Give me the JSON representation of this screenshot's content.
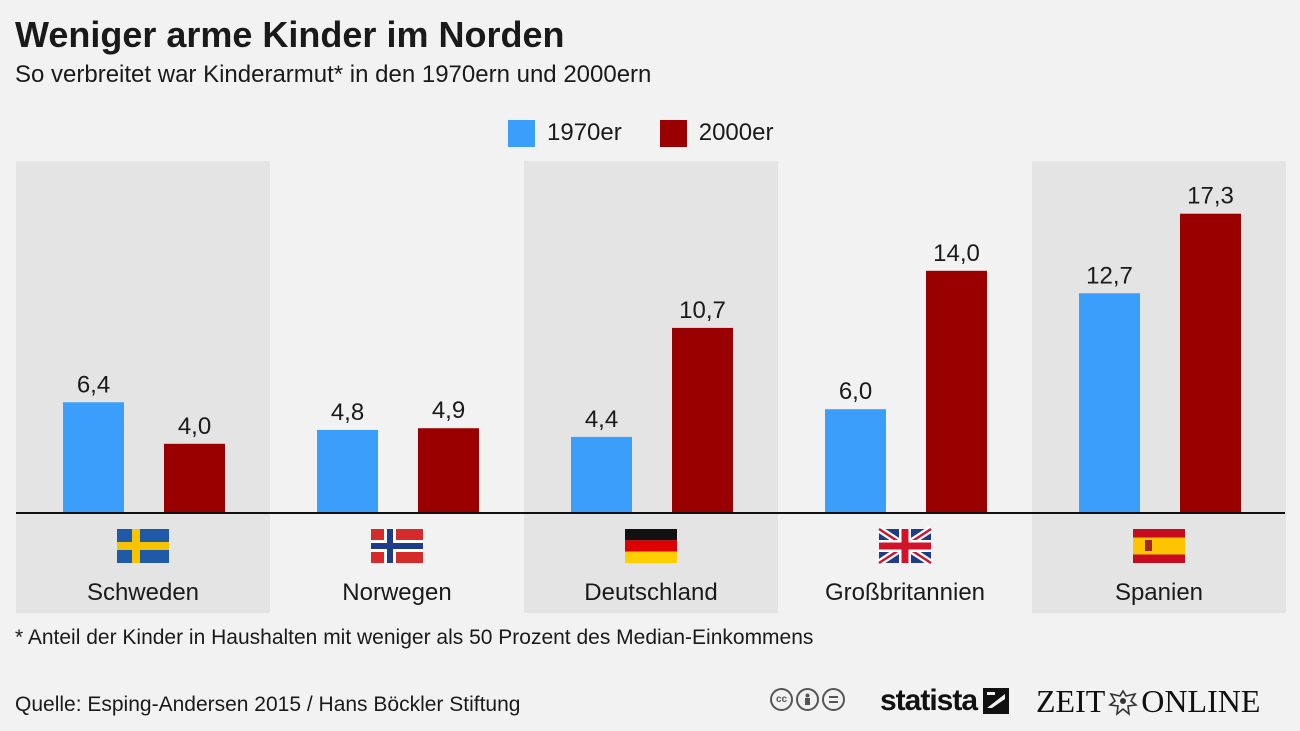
{
  "title": "Weniger arme Kinder im Norden",
  "subtitle": "So verbreitet war Kinderarmut* in den 1970ern und 2000ern",
  "colors": {
    "series_1970": "#3a9efa",
    "series_2000": "#9b0000",
    "panel": "#e4e4e4",
    "background": "#f2f2f2"
  },
  "chart_data": {
    "type": "bar",
    "categories": [
      "Schweden",
      "Norwegen",
      "Deutschland",
      "Großbritannien",
      "Spanien"
    ],
    "flags": [
      "sweden-flag-icon",
      "norway-flag-icon",
      "germany-flag-icon",
      "uk-flag-icon",
      "spain-flag-icon"
    ],
    "series": [
      {
        "name": "1970er",
        "values": [
          6.4,
          4.8,
          4.4,
          6.0,
          12.7
        ],
        "labels": [
          "6,4",
          "4,8",
          "4,4",
          "6,0",
          "12,7"
        ]
      },
      {
        "name": "2000er",
        "values": [
          4.0,
          4.9,
          10.7,
          14.0,
          17.3
        ],
        "labels": [
          "4,0",
          "4,9",
          "10,7",
          "14,0",
          "17,3"
        ]
      }
    ],
    "ylim": [
      0,
      20
    ],
    "legend_position": "top-center",
    "grid": false
  },
  "footnote": "* Anteil der Kinder in Haushalten mit weniger als 50 Prozent des Median-Einkommens",
  "source": "Quelle: Esping-Andersen 2015 / Hans Böckler Stiftung",
  "license_icons": [
    "cc-icon",
    "attribution-icon",
    "no-derivatives-icon"
  ],
  "brand": {
    "statista": "statista",
    "zeit_left": "ZEIT",
    "zeit_right": "ONLINE"
  }
}
